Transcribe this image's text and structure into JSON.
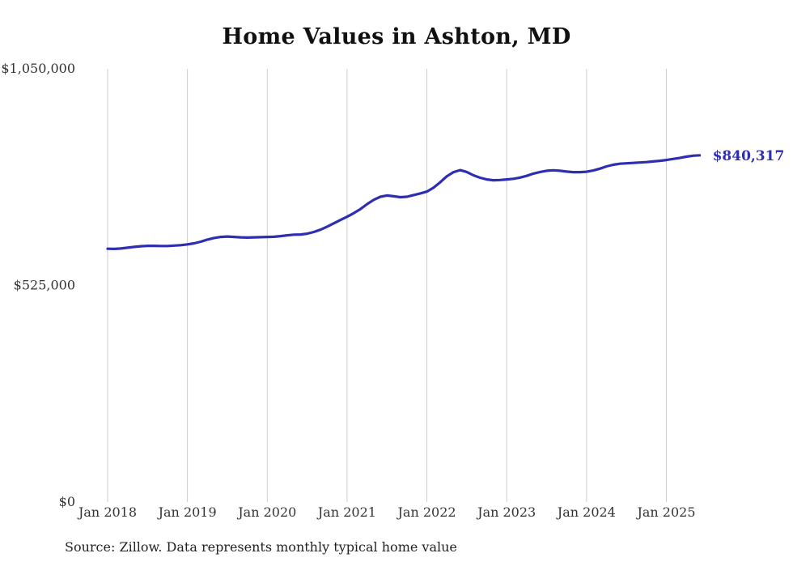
{
  "page": {
    "source_note": "Source: Zillow. Data represents monthly typical home value"
  },
  "colors": {
    "background": "#ffffff",
    "line": "#2e2eb2",
    "grid": "#cccccc",
    "axis_label": "#333333",
    "title": "#111111",
    "end_label": "#2e2eb2"
  },
  "chart_data": {
    "type": "line",
    "title": "Home Values in Ashton, MD",
    "xlabel": "",
    "ylabel": "",
    "x_unit": "month",
    "x_start": "2018-01",
    "x_end": "2025-06",
    "ylim": [
      0,
      1050000
    ],
    "grid": "vertical-only",
    "legend": "none",
    "xticks": [
      "Jan 2018",
      "Jan 2019",
      "Jan 2020",
      "Jan 2021",
      "Jan 2022",
      "Jan 2023",
      "Jan 2024",
      "Jan 2025"
    ],
    "yticks": [
      {
        "value": 0,
        "label": "$0"
      },
      {
        "value": 525000,
        "label": "$525,000"
      },
      {
        "value": 1050000,
        "label": "$1,050,000"
      }
    ],
    "series": [
      {
        "name": "Typical home value",
        "values": [
          614000,
          613500,
          614500,
          616500,
          618500,
          620000,
          621000,
          621000,
          620500,
          620500,
          621500,
          622500,
          624500,
          627000,
          631000,
          636000,
          640000,
          642500,
          643500,
          642500,
          641500,
          641000,
          641500,
          642000,
          642500,
          643000,
          644500,
          646500,
          648000,
          648500,
          650500,
          654500,
          660000,
          667500,
          675500,
          683500,
          691500,
          700000,
          710000,
          722000,
          732500,
          740000,
          743000,
          741000,
          739000,
          740000,
          744000,
          748000,
          752500,
          762000,
          775000,
          789500,
          799500,
          804500,
          800000,
          792000,
          786000,
          782000,
          780000,
          780500,
          782000,
          783500,
          786500,
          790500,
          796000,
          800000,
          803000,
          804000,
          803000,
          801000,
          799500,
          799500,
          800500,
          803500,
          808000,
          813500,
          817500,
          820000,
          821000,
          822000,
          823000,
          824000,
          825500,
          827000,
          829000,
          831500,
          834000,
          837000,
          839500,
          840317
        ]
      }
    ],
    "final_value": 840317,
    "final_value_label": "$840,317"
  }
}
